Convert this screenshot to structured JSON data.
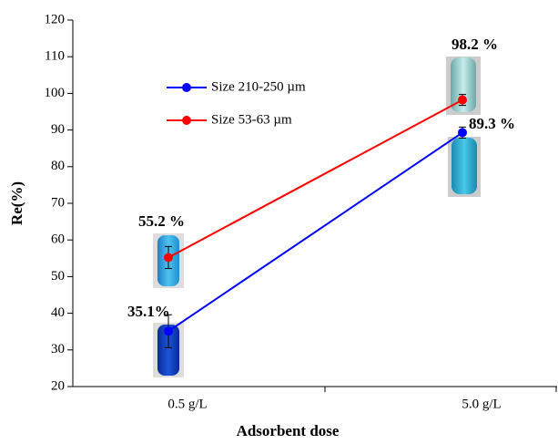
{
  "chart_data": {
    "type": "line",
    "x_label": "Adsorbent dose",
    "y_label": "Re(%)",
    "categories": [
      "0.5 g/L",
      "5.0 g/L"
    ],
    "series": [
      {
        "name": "Size 210-250 µm",
        "color": "#0000ff",
        "values": [
          35.1,
          89.3
        ],
        "errors": [
          4.5,
          1.5
        ],
        "value_labels": [
          "35.1%",
          "89.3 %"
        ]
      },
      {
        "name": "Size 53-63 µm",
        "color": "#ff0000",
        "values": [
          55.2,
          98.2
        ],
        "errors": [
          3,
          1.5
        ],
        "value_labels": [
          "55.2 %",
          "98.2 %"
        ]
      }
    ],
    "ylim": [
      20,
      120
    ],
    "yticks": [
      20,
      30,
      40,
      50,
      60,
      70,
      80,
      90,
      100,
      110,
      120
    ],
    "grid": false,
    "legend": "upper left"
  }
}
